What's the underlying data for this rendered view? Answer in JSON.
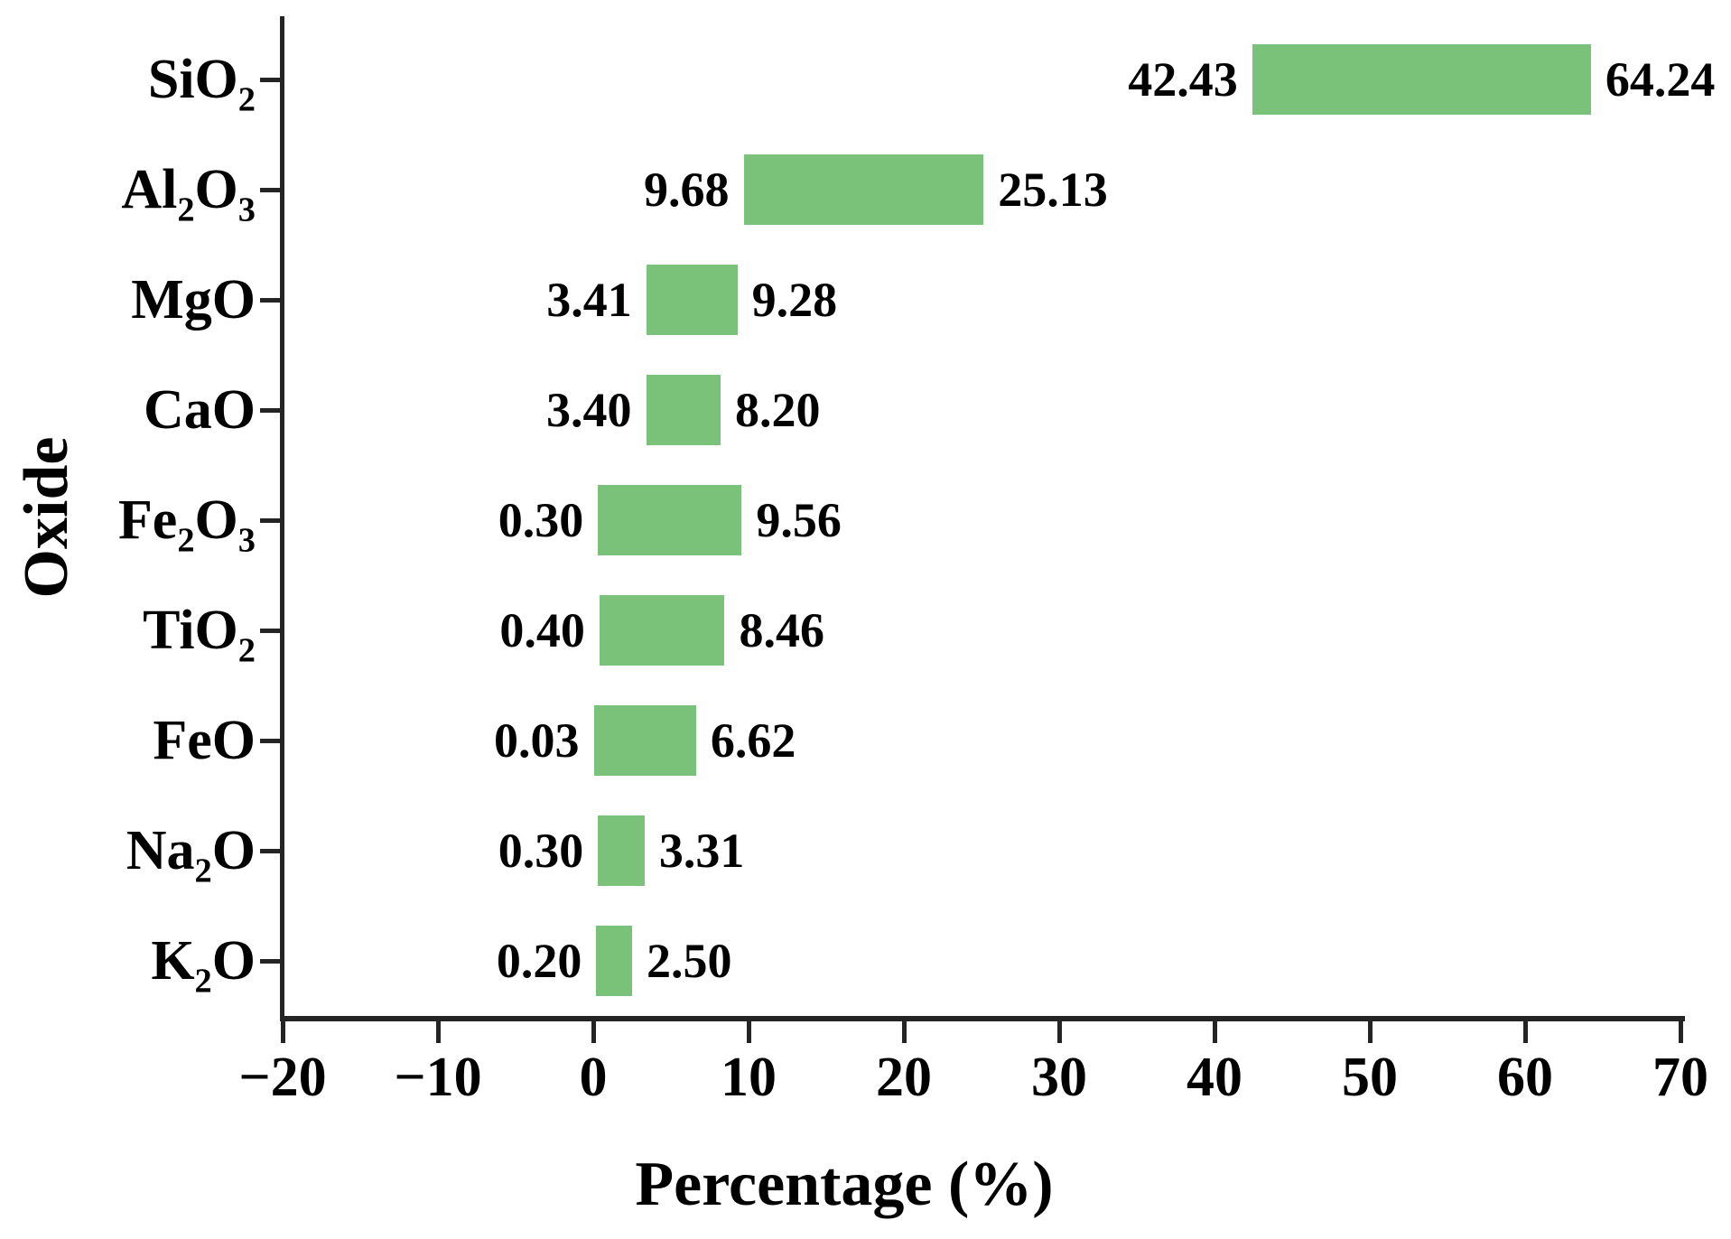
{
  "figure": {
    "background": "#ffffff",
    "axis_color": "#242424",
    "text_color": "#000000"
  },
  "chart_data": {
    "type": "bar",
    "subtype": "horizontal-range-bars",
    "title": "",
    "xlabel": "Percentage (%)",
    "ylabel": "Oxide",
    "xlim": [
      -20,
      70
    ],
    "grid": false,
    "legend": null,
    "bar_color": "#7AC17A",
    "x_ticks": [
      {
        "value": -20,
        "label": "−20"
      },
      {
        "value": -10,
        "label": "−10"
      },
      {
        "value": 0,
        "label": "0"
      },
      {
        "value": 10,
        "label": "10"
      },
      {
        "value": 20,
        "label": "20"
      },
      {
        "value": 30,
        "label": "30"
      },
      {
        "value": 40,
        "label": "40"
      },
      {
        "value": 50,
        "label": "50"
      },
      {
        "value": 60,
        "label": "60"
      },
      {
        "value": 70,
        "label": "70"
      }
    ],
    "categories": [
      {
        "name": "SiO2",
        "parts": [
          {
            "t": "SiO"
          },
          {
            "s": "2"
          }
        ],
        "min": 42.43,
        "max": 64.24,
        "min_label": "42.43",
        "max_label": "64.24"
      },
      {
        "name": "Al2O3",
        "parts": [
          {
            "t": "Al"
          },
          {
            "s": "2"
          },
          {
            "t": "O"
          },
          {
            "s": "3"
          }
        ],
        "min": 9.68,
        "max": 25.13,
        "min_label": "9.68",
        "max_label": "25.13"
      },
      {
        "name": "MgO",
        "parts": [
          {
            "t": "MgO"
          }
        ],
        "min": 3.41,
        "max": 9.28,
        "min_label": "3.41",
        "max_label": "9.28"
      },
      {
        "name": "CaO",
        "parts": [
          {
            "t": "CaO"
          }
        ],
        "min": 3.4,
        "max": 8.2,
        "min_label": "3.40",
        "max_label": "8.20"
      },
      {
        "name": "Fe2O3",
        "parts": [
          {
            "t": "Fe"
          },
          {
            "s": "2"
          },
          {
            "t": "O"
          },
          {
            "s": "3"
          }
        ],
        "min": 0.3,
        "max": 9.56,
        "min_label": "0.30",
        "max_label": "9.56"
      },
      {
        "name": "TiO2",
        "parts": [
          {
            "t": "TiO"
          },
          {
            "s": "2"
          }
        ],
        "min": 0.4,
        "max": 8.46,
        "min_label": "0.40",
        "max_label": "8.46"
      },
      {
        "name": "FeO",
        "parts": [
          {
            "t": "FeO"
          }
        ],
        "min": 0.03,
        "max": 6.62,
        "min_label": "0.03",
        "max_label": "6.62"
      },
      {
        "name": "Na2O",
        "parts": [
          {
            "t": "Na"
          },
          {
            "s": "2"
          },
          {
            "t": "O"
          }
        ],
        "min": 0.3,
        "max": 3.31,
        "min_label": "0.30",
        "max_label": "3.31"
      },
      {
        "name": "K2O",
        "parts": [
          {
            "t": "K"
          },
          {
            "s": "2"
          },
          {
            "t": "O"
          }
        ],
        "min": 0.2,
        "max": 2.5,
        "min_label": "0.20",
        "max_label": "2.50"
      }
    ]
  }
}
